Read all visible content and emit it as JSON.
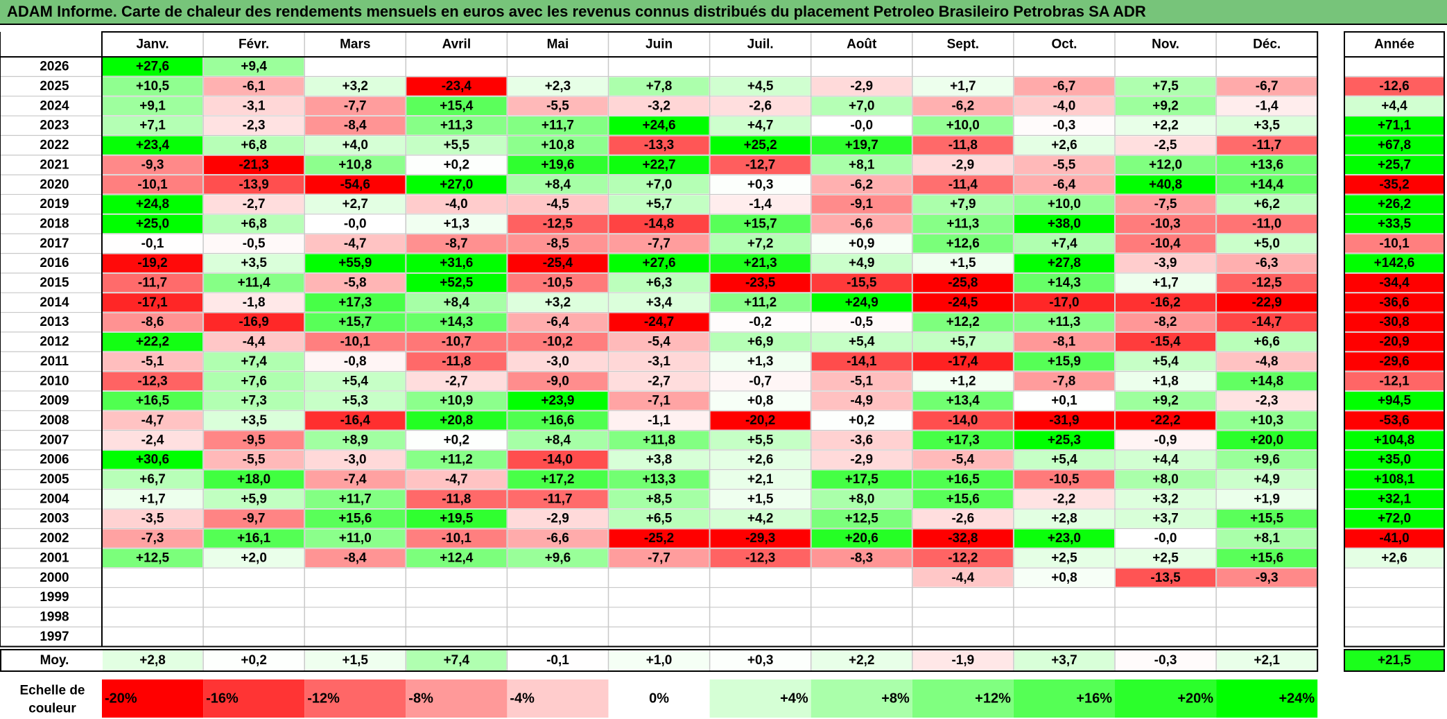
{
  "title": "ADAM Informe. Carte de chaleur des rendements mensuels en euros avec les revenus connus distribués du placement Petroleo Brasileiro Petrobras SA ADR",
  "chart_data": {
    "type": "heatmap",
    "months": [
      "Janv.",
      "Févr.",
      "Mars",
      "Avril",
      "Mai",
      "Juin",
      "Juil.",
      "Août",
      "Sept.",
      "Oct.",
      "Nov.",
      "Déc."
    ],
    "year_header": "Année",
    "avg_label": "Moy.",
    "scale_label": [
      "Echelle de",
      "couleur"
    ],
    "rows": [
      {
        "year": "2026",
        "values": [
          27.6,
          9.4,
          null,
          null,
          null,
          null,
          null,
          null,
          null,
          null,
          null,
          null
        ],
        "annual": null
      },
      {
        "year": "2025",
        "values": [
          10.5,
          -6.1,
          3.2,
          -23.4,
          2.3,
          7.8,
          4.5,
          -2.9,
          1.7,
          -6.7,
          7.5,
          -6.7
        ],
        "annual": -12.6
      },
      {
        "year": "2024",
        "values": [
          9.1,
          -3.1,
          -7.7,
          15.4,
          -5.5,
          -3.2,
          -2.6,
          7.0,
          -6.2,
          -4.0,
          9.2,
          -1.4
        ],
        "annual": 4.4
      },
      {
        "year": "2023",
        "values": [
          7.1,
          -2.3,
          -8.4,
          11.3,
          11.7,
          24.6,
          4.7,
          -0.0,
          10.0,
          -0.3,
          2.2,
          3.5
        ],
        "annual": 71.1
      },
      {
        "year": "2022",
        "values": [
          23.4,
          6.8,
          4.0,
          5.5,
          10.8,
          -13.3,
          25.2,
          19.7,
          -11.8,
          2.6,
          -2.5,
          -11.7
        ],
        "annual": 67.8
      },
      {
        "year": "2021",
        "values": [
          -9.3,
          -21.3,
          10.8,
          0.2,
          19.6,
          22.7,
          -12.7,
          8.1,
          -2.9,
          -5.5,
          12.0,
          13.6
        ],
        "annual": 25.7
      },
      {
        "year": "2020",
        "values": [
          -10.1,
          -13.9,
          -54.6,
          27.0,
          8.4,
          7.0,
          0.3,
          -6.2,
          -11.4,
          -6.4,
          40.8,
          14.4
        ],
        "annual": -35.2
      },
      {
        "year": "2019",
        "values": [
          24.8,
          -2.7,
          2.7,
          -4.0,
          -4.5,
          5.7,
          -1.4,
          -9.1,
          7.9,
          10.0,
          -7.5,
          6.2
        ],
        "annual": 26.2
      },
      {
        "year": "2018",
        "values": [
          25.0,
          6.8,
          -0.0,
          1.3,
          -12.5,
          -14.8,
          15.7,
          -6.6,
          11.3,
          38.0,
          -10.3,
          -11.0
        ],
        "annual": 33.5
      },
      {
        "year": "2017",
        "values": [
          -0.1,
          -0.5,
          -4.7,
          -8.7,
          -8.5,
          -7.7,
          7.2,
          0.9,
          12.6,
          7.4,
          -10.4,
          5.0
        ],
        "annual": -10.1
      },
      {
        "year": "2016",
        "values": [
          -19.2,
          3.5,
          55.9,
          31.6,
          -25.4,
          27.6,
          21.3,
          4.9,
          1.5,
          27.8,
          -3.9,
          -6.3
        ],
        "annual": 142.6
      },
      {
        "year": "2015",
        "values": [
          -11.7,
          11.4,
          -5.8,
          52.5,
          -10.5,
          6.3,
          -23.5,
          -15.5,
          -25.8,
          14.3,
          1.7,
          -12.5
        ],
        "annual": -34.4
      },
      {
        "year": "2014",
        "values": [
          -17.1,
          -1.8,
          17.3,
          8.4,
          3.2,
          3.4,
          11.2,
          24.9,
          -24.5,
          -17.0,
          -16.2,
          -22.9
        ],
        "annual": -36.6
      },
      {
        "year": "2013",
        "values": [
          -8.6,
          -16.9,
          15.7,
          14.3,
          -6.4,
          -24.7,
          -0.2,
          -0.5,
          12.2,
          11.3,
          -8.2,
          -14.7
        ],
        "annual": -30.8
      },
      {
        "year": "2012",
        "values": [
          22.2,
          -4.4,
          -10.1,
          -10.7,
          -10.2,
          -5.4,
          6.9,
          5.4,
          5.7,
          -8.1,
          -15.4,
          6.6
        ],
        "annual": -20.9
      },
      {
        "year": "2011",
        "values": [
          -5.1,
          7.4,
          -0.8,
          -11.8,
          -3.0,
          -3.1,
          1.3,
          -14.1,
          -17.4,
          15.9,
          5.4,
          -4.8
        ],
        "annual": -29.6
      },
      {
        "year": "2010",
        "values": [
          -12.3,
          7.6,
          5.4,
          -2.7,
          -9.0,
          -2.7,
          -0.7,
          -5.1,
          1.2,
          -7.8,
          1.8,
          14.8
        ],
        "annual": -12.1
      },
      {
        "year": "2009",
        "values": [
          16.5,
          7.3,
          5.3,
          10.9,
          23.9,
          -7.1,
          0.8,
          -4.9,
          13.4,
          0.1,
          9.2,
          -2.3
        ],
        "annual": 94.5
      },
      {
        "year": "2008",
        "values": [
          -4.7,
          3.5,
          -16.4,
          20.8,
          16.6,
          -1.1,
          -20.2,
          0.2,
          -14.0,
          -31.9,
          -22.2,
          10.3
        ],
        "annual": -53.6
      },
      {
        "year": "2007",
        "values": [
          -2.4,
          -9.5,
          8.9,
          0.2,
          8.4,
          11.8,
          5.5,
          -3.6,
          17.3,
          25.3,
          -0.9,
          20.0
        ],
        "annual": 104.8
      },
      {
        "year": "2006",
        "values": [
          30.6,
          -5.5,
          -3.0,
          11.2,
          -14.0,
          3.8,
          2.6,
          -2.9,
          -5.4,
          5.4,
          4.4,
          9.6
        ],
        "annual": 35.0
      },
      {
        "year": "2005",
        "values": [
          6.7,
          18.0,
          -7.4,
          -4.7,
          17.2,
          13.3,
          2.1,
          17.5,
          16.5,
          -10.5,
          8.0,
          4.9
        ],
        "annual": 108.1
      },
      {
        "year": "2004",
        "values": [
          1.7,
          5.9,
          11.7,
          -11.8,
          -11.7,
          8.5,
          1.5,
          8.0,
          15.6,
          -2.2,
          3.2,
          1.9
        ],
        "annual": 32.1
      },
      {
        "year": "2003",
        "values": [
          -3.5,
          -9.7,
          15.6,
          19.5,
          -2.9,
          6.5,
          4.2,
          12.5,
          -2.6,
          2.8,
          3.7,
          15.5
        ],
        "annual": 72.0
      },
      {
        "year": "2002",
        "values": [
          -7.3,
          16.1,
          11.0,
          -10.1,
          -6.6,
          -25.2,
          -29.3,
          20.6,
          -32.8,
          23.0,
          -0.0,
          8.1
        ],
        "annual": -41.0
      },
      {
        "year": "2001",
        "values": [
          12.5,
          2.0,
          -8.4,
          12.4,
          9.6,
          -7.7,
          -12.3,
          -8.3,
          -12.2,
          2.5,
          2.5,
          15.6
        ],
        "annual": 2.6
      },
      {
        "year": "2000",
        "values": [
          null,
          null,
          null,
          null,
          null,
          null,
          null,
          null,
          -4.4,
          0.8,
          -13.5,
          -9.3
        ],
        "annual": null
      },
      {
        "year": "1999",
        "values": [
          null,
          null,
          null,
          null,
          null,
          null,
          null,
          null,
          null,
          null,
          null,
          null
        ],
        "annual": null
      },
      {
        "year": "1998",
        "values": [
          null,
          null,
          null,
          null,
          null,
          null,
          null,
          null,
          null,
          null,
          null,
          null
        ],
        "annual": null
      },
      {
        "year": "1997",
        "values": [
          null,
          null,
          null,
          null,
          null,
          null,
          null,
          null,
          null,
          null,
          null,
          null
        ],
        "annual": null
      }
    ],
    "average": {
      "values": [
        2.8,
        0.2,
        1.5,
        7.4,
        -0.1,
        1.0,
        0.3,
        2.2,
        -1.9,
        3.7,
        -0.3,
        2.1
      ],
      "annual": 21.5
    },
    "color_scale": [
      {
        "value": -20,
        "label": "-20%",
        "color": "#ff0000"
      },
      {
        "value": -16,
        "label": "-16%",
        "color": "#ff3434"
      },
      {
        "value": -12,
        "label": "-12%",
        "color": "#ff6767"
      },
      {
        "value": -8,
        "label": "-8%",
        "color": "#ff9999"
      },
      {
        "value": -4,
        "label": "-4%",
        "color": "#ffcccc"
      },
      {
        "value": 0,
        "label": "0%",
        "color": "#ffffff"
      },
      {
        "value": 4,
        "label": "+4%",
        "color": "#d5ffd5"
      },
      {
        "value": 8,
        "label": "+8%",
        "color": "#aaffaa"
      },
      {
        "value": 12,
        "label": "+12%",
        "color": "#80ff80"
      },
      {
        "value": 16,
        "label": "+16%",
        "color": "#55ff55"
      },
      {
        "value": 20,
        "label": "+20%",
        "color": "#2bff2b"
      },
      {
        "value": 24,
        "label": "+24%",
        "color": "#00ff00"
      }
    ]
  }
}
